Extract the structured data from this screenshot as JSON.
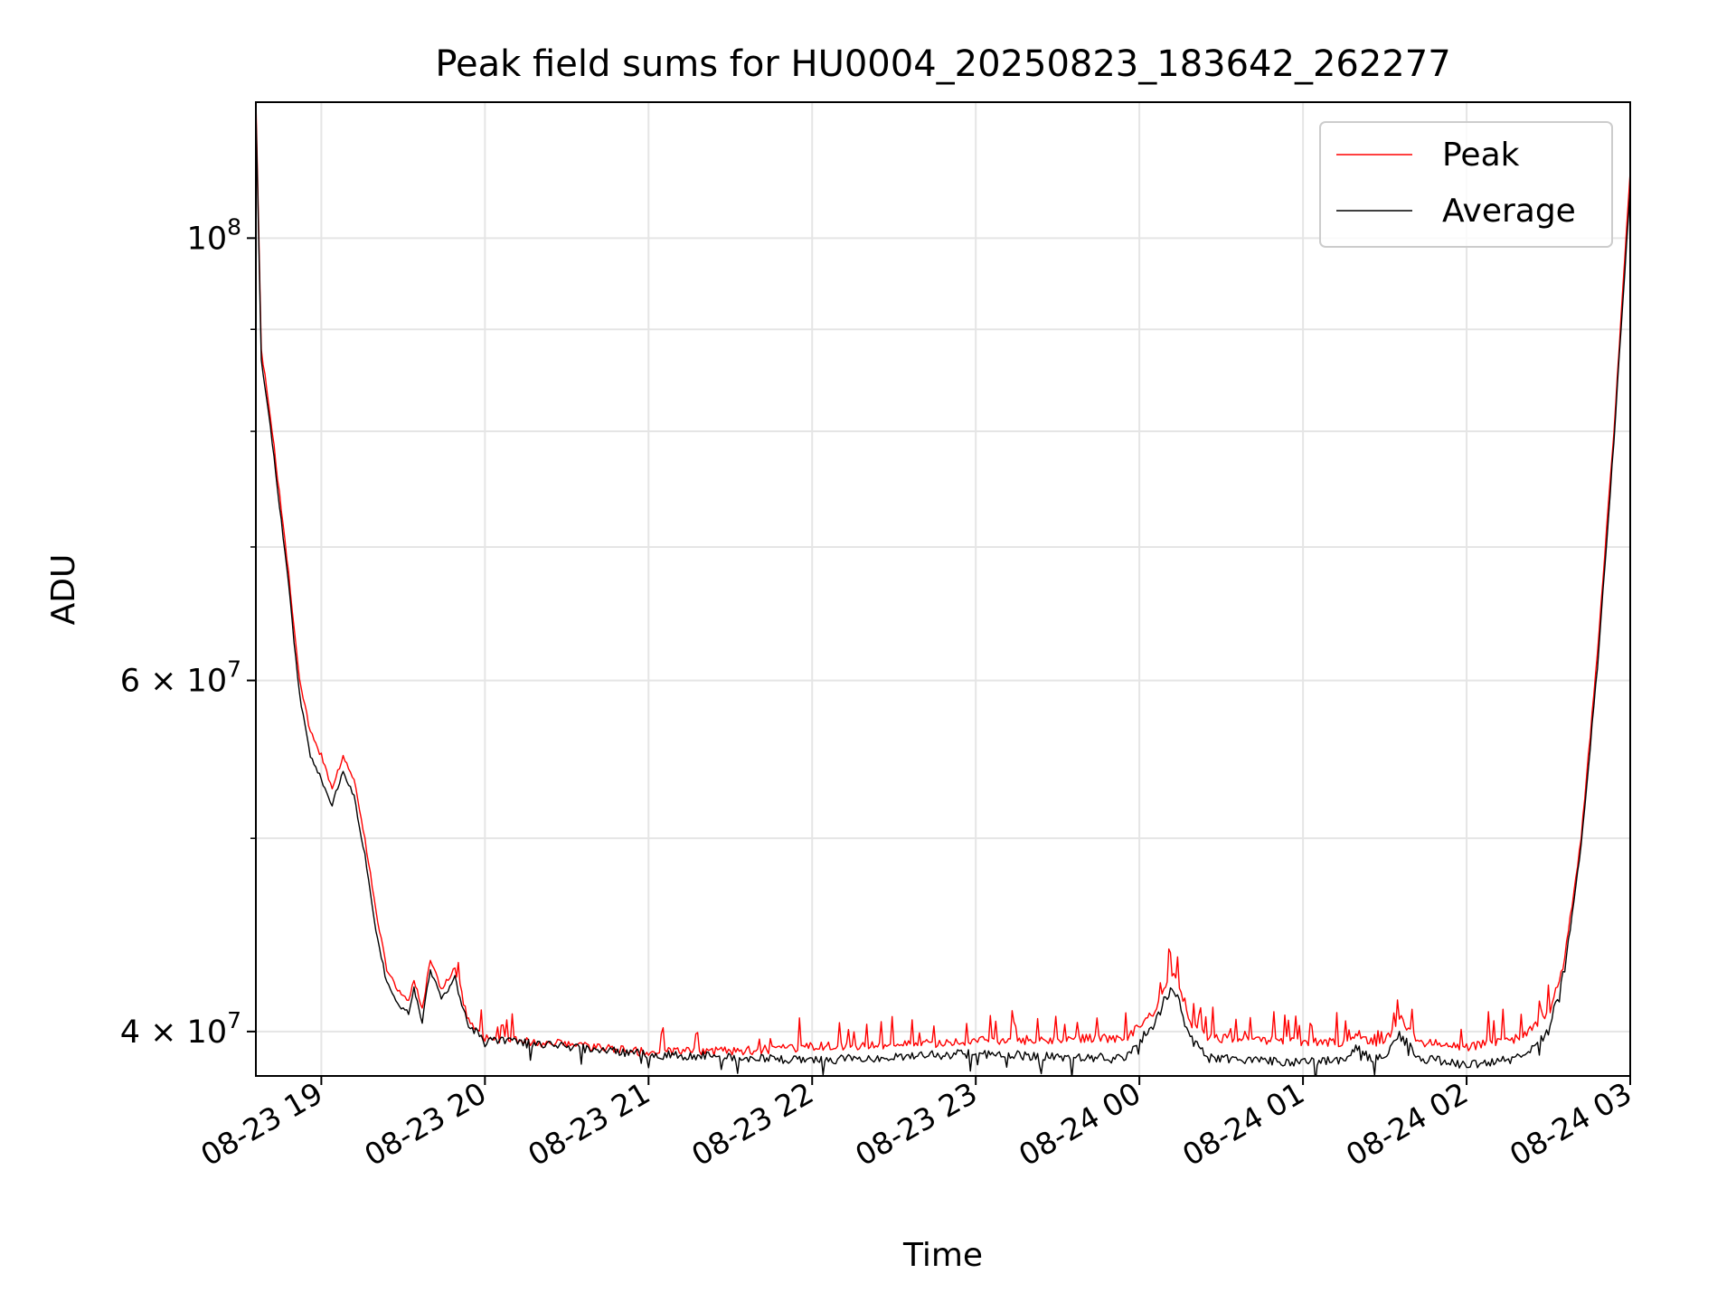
{
  "chart_data": {
    "type": "line",
    "title": "Peak field sums for HU0004_20250823_183642_262277",
    "xlabel": "Time",
    "ylabel": "ADU",
    "x_range": [
      "2025-08-23 18:36",
      "2025-08-24 03:00"
    ],
    "x_ticks": [
      "08-23 19",
      "08-23 20",
      "08-23 21",
      "08-23 22",
      "08-23 23",
      "08-24 00",
      "08-24 01",
      "08-24 02",
      "08-24 03"
    ],
    "y_scale": "log",
    "y_range": [
      38000000,
      117000000
    ],
    "y_tick_labels": [
      {
        "value": 40000000,
        "label": "4 × 10^7"
      },
      {
        "value": 60000000,
        "label": "6 × 10^7"
      },
      {
        "value": 100000000,
        "label": "10^8"
      }
    ],
    "y_minor_ticks": [
      50000000,
      70000000,
      80000000,
      90000000
    ],
    "grid": true,
    "legend_position": "top-right",
    "series": [
      {
        "name": "Peak",
        "color": "#ff0000",
        "points": [
          [
            "2025-08-23 18:36",
            117000000
          ],
          [
            "2025-08-23 18:38",
            88000000
          ],
          [
            "2025-08-23 18:42",
            80000000
          ],
          [
            "2025-08-23 18:48",
            68000000
          ],
          [
            "2025-08-23 18:52",
            60000000
          ],
          [
            "2025-08-23 18:56",
            56500000
          ],
          [
            "2025-08-23 19:00",
            55000000
          ],
          [
            "2025-08-23 19:04",
            53000000
          ],
          [
            "2025-08-23 19:08",
            55000000
          ],
          [
            "2025-08-23 19:12",
            53500000
          ],
          [
            "2025-08-23 19:16",
            50000000
          ],
          [
            "2025-08-23 19:20",
            46000000
          ],
          [
            "2025-08-23 19:24",
            43000000
          ],
          [
            "2025-08-23 19:28",
            42000000
          ],
          [
            "2025-08-23 19:32",
            41500000
          ],
          [
            "2025-08-23 19:34",
            42500000
          ],
          [
            "2025-08-23 19:37",
            41000000
          ],
          [
            "2025-08-23 19:40",
            43500000
          ],
          [
            "2025-08-23 19:44",
            42000000
          ],
          [
            "2025-08-23 19:49",
            43000000
          ],
          [
            "2025-08-23 19:54",
            40500000
          ],
          [
            "2025-08-23 20:00",
            39700000
          ],
          [
            "2025-08-23 20:30",
            39400000
          ],
          [
            "2025-08-23 21:00",
            39050000
          ],
          [
            "2025-08-23 21:30",
            39100000
          ],
          [
            "2025-08-23 22:00",
            39300000
          ],
          [
            "2025-08-23 22:30",
            39400000
          ],
          [
            "2025-08-23 23:00",
            39550000
          ],
          [
            "2025-08-23 23:30",
            39650000
          ],
          [
            "2025-08-23 23:55",
            39700000
          ],
          [
            "2025-08-24 00:05",
            40800000
          ],
          [
            "2025-08-24 00:09",
            42000000
          ],
          [
            "2025-08-24 00:12",
            42800000
          ],
          [
            "2025-08-24 00:14",
            42200000
          ],
          [
            "2025-08-24 00:18",
            40500000
          ],
          [
            "2025-08-24 00:25",
            39700000
          ],
          [
            "2025-08-24 00:40",
            39650000
          ],
          [
            "2025-08-24 01:00",
            39550000
          ],
          [
            "2025-08-24 01:15",
            39500000
          ],
          [
            "2025-08-24 01:20",
            39900000
          ],
          [
            "2025-08-24 01:25",
            39500000
          ],
          [
            "2025-08-24 01:30",
            39600000
          ],
          [
            "2025-08-24 01:36",
            40600000
          ],
          [
            "2025-08-24 01:42",
            39500000
          ],
          [
            "2025-08-24 02:00",
            39300000
          ],
          [
            "2025-08-24 02:20",
            39700000
          ],
          [
            "2025-08-24 02:30",
            40800000
          ],
          [
            "2025-08-24 02:36",
            43500000
          ],
          [
            "2025-08-24 02:42",
            50000000
          ],
          [
            "2025-08-24 02:48",
            62000000
          ],
          [
            "2025-08-24 02:54",
            80000000
          ],
          [
            "2025-08-24 03:00",
            108000000
          ]
        ]
      },
      {
        "name": "Average",
        "color": "#000000",
        "points": [
          [
            "2025-08-23 18:36",
            116000000
          ],
          [
            "2025-08-23 18:38",
            87000000
          ],
          [
            "2025-08-23 18:42",
            79000000
          ],
          [
            "2025-08-23 18:48",
            67000000
          ],
          [
            "2025-08-23 18:52",
            59000000
          ],
          [
            "2025-08-23 18:56",
            55000000
          ],
          [
            "2025-08-23 19:00",
            53500000
          ],
          [
            "2025-08-23 19:04",
            52000000
          ],
          [
            "2025-08-23 19:08",
            54000000
          ],
          [
            "2025-08-23 19:12",
            52500000
          ],
          [
            "2025-08-23 19:16",
            49000000
          ],
          [
            "2025-08-23 19:20",
            45000000
          ],
          [
            "2025-08-23 19:24",
            42300000
          ],
          [
            "2025-08-23 19:28",
            41300000
          ],
          [
            "2025-08-23 19:32",
            40900000
          ],
          [
            "2025-08-23 19:34",
            42000000
          ],
          [
            "2025-08-23 19:37",
            40500000
          ],
          [
            "2025-08-23 19:40",
            43000000
          ],
          [
            "2025-08-23 19:44",
            41500000
          ],
          [
            "2025-08-23 19:49",
            42500000
          ],
          [
            "2025-08-23 19:54",
            40300000
          ],
          [
            "2025-08-23 20:00",
            39600000
          ],
          [
            "2025-08-23 20:30",
            39300000
          ],
          [
            "2025-08-23 21:00",
            38950000
          ],
          [
            "2025-08-23 21:30",
            38850000
          ],
          [
            "2025-08-23 22:00",
            38700000
          ],
          [
            "2025-08-23 22:30",
            38850000
          ],
          [
            "2025-08-23 23:00",
            39000000
          ],
          [
            "2025-08-23 23:30",
            38850000
          ],
          [
            "2025-08-23 23:55",
            38800000
          ],
          [
            "2025-08-24 00:05",
            40300000
          ],
          [
            "2025-08-24 00:09",
            41500000
          ],
          [
            "2025-08-24 00:12",
            42000000
          ],
          [
            "2025-08-24 00:14",
            41600000
          ],
          [
            "2025-08-24 00:18",
            39800000
          ],
          [
            "2025-08-24 00:25",
            38800000
          ],
          [
            "2025-08-24 00:40",
            38700000
          ],
          [
            "2025-08-24 01:00",
            38600000
          ],
          [
            "2025-08-24 01:15",
            38700000
          ],
          [
            "2025-08-24 01:20",
            39300000
          ],
          [
            "2025-08-24 01:25",
            38700000
          ],
          [
            "2025-08-24 01:30",
            38900000
          ],
          [
            "2025-08-24 01:36",
            40000000
          ],
          [
            "2025-08-24 01:42",
            38800000
          ],
          [
            "2025-08-24 02:00",
            38500000
          ],
          [
            "2025-08-24 02:20",
            38800000
          ],
          [
            "2025-08-24 02:30",
            40000000
          ],
          [
            "2025-08-24 02:36",
            43000000
          ],
          [
            "2025-08-24 02:42",
            49500000
          ],
          [
            "2025-08-24 02:48",
            61000000
          ],
          [
            "2025-08-24 02:54",
            79000000
          ],
          [
            "2025-08-24 03:00",
            106000000
          ]
        ]
      }
    ]
  }
}
